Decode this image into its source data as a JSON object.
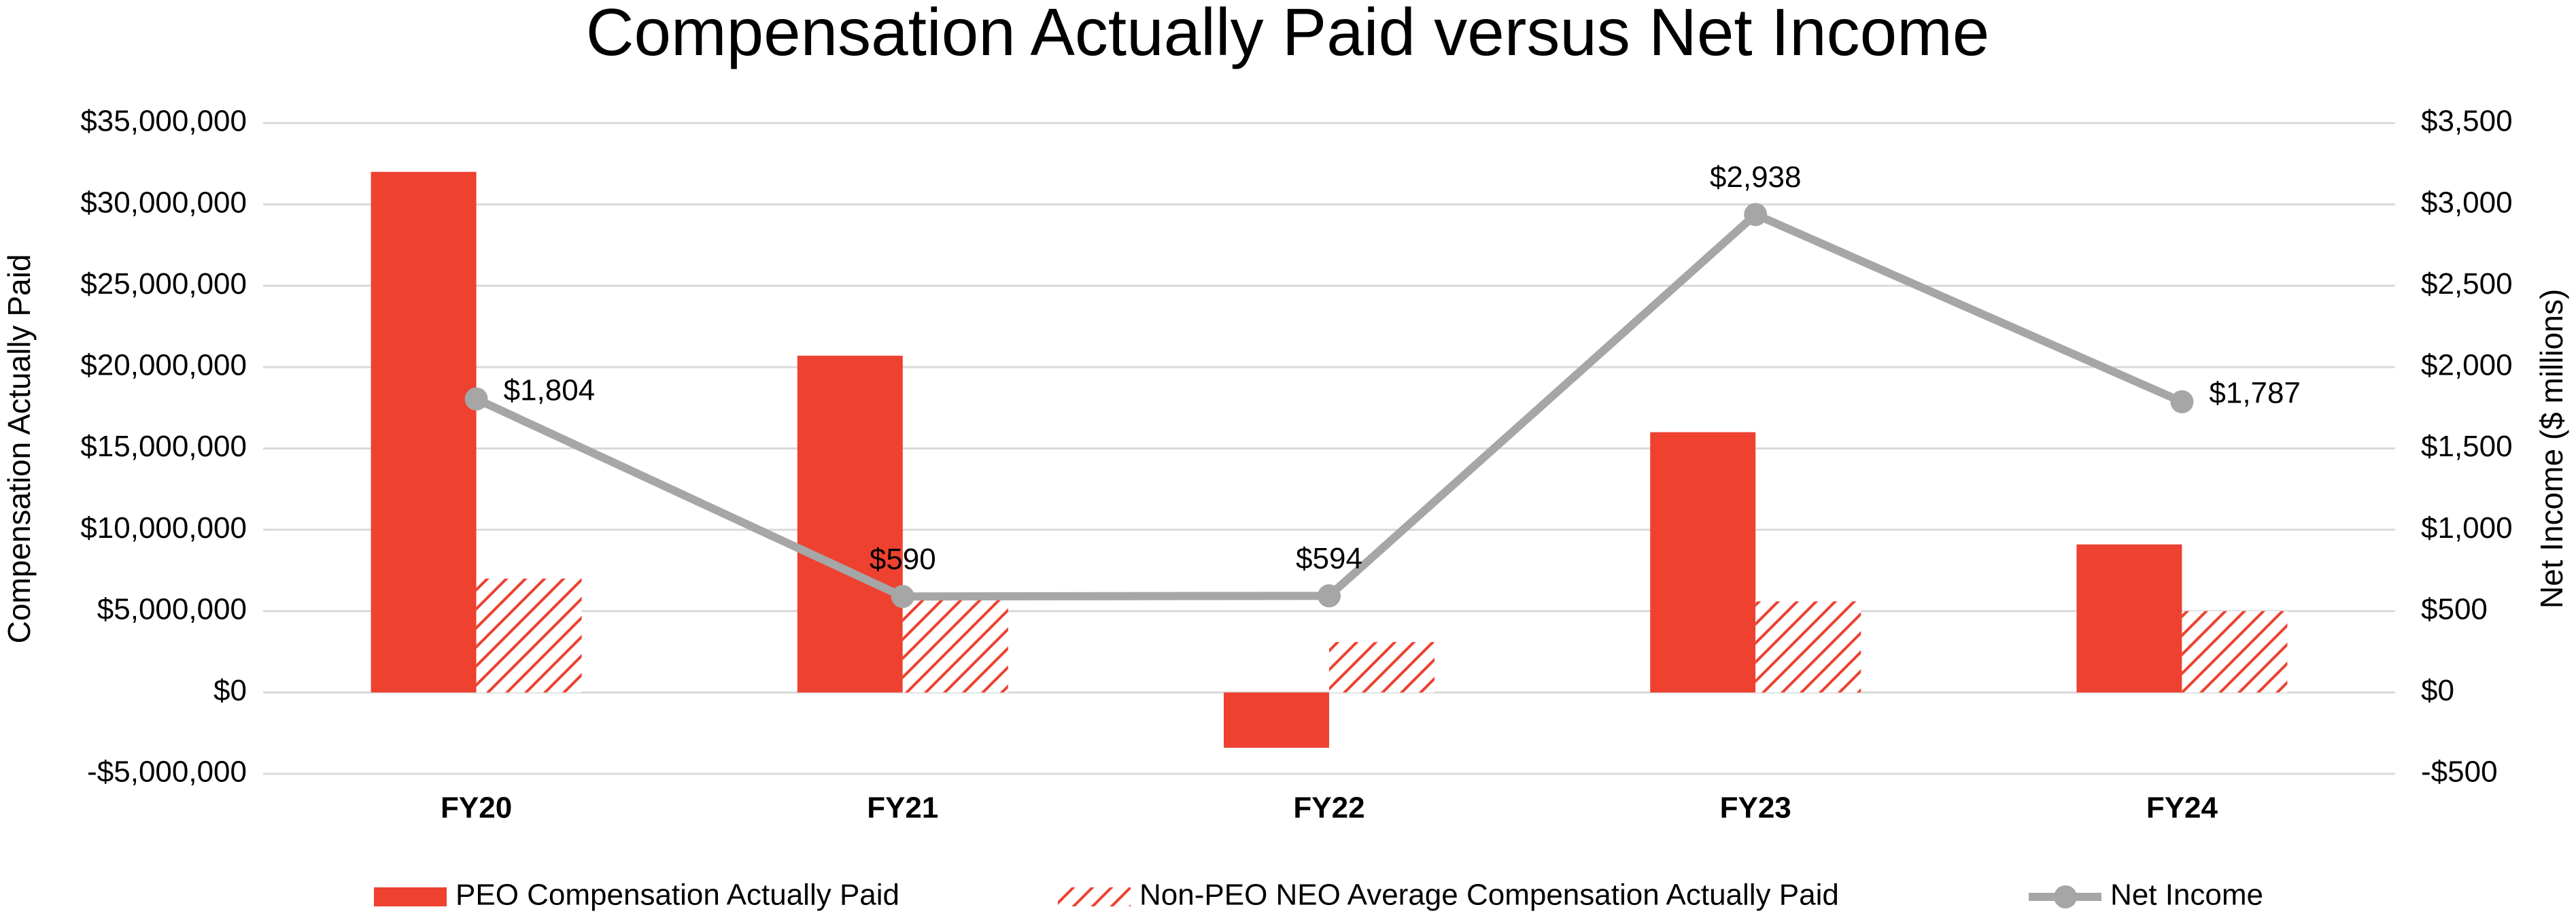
{
  "chart_data": {
    "type": "bar_line",
    "title": "Compensation Actually Paid versus Net Income",
    "y_label": "Compensation Actually Paid",
    "y2_label": "Net Income ($ millions)",
    "categories": [
      "FY20",
      "FY21",
      "FY22",
      "FY23",
      "FY24"
    ],
    "series": [
      {
        "name": "PEO Compensation Actually Paid",
        "type": "bar",
        "color": "#ee4130",
        "values": [
          32000000,
          20700000,
          -3400000,
          16000000,
          9100000
        ]
      },
      {
        "name": "Non-PEO NEO Average Compensation Actually Paid",
        "type": "bar",
        "pattern": "hatch",
        "color": "#ee4130",
        "values": [
          7000000,
          6000000,
          3100000,
          5600000,
          5000000
        ]
      },
      {
        "name": "Net Income",
        "type": "line",
        "axis": "y2",
        "color": "#a6a6a6",
        "values": [
          1804,
          590,
          594,
          2938,
          1787
        ],
        "value_labels": [
          "$1,804",
          "$590",
          "$594",
          "$2,938",
          "$1,787"
        ]
      }
    ],
    "ylim": [
      -5000000,
      35000000
    ],
    "yticks": [
      {
        "value": -5000000,
        "label": "-$5,000,000"
      },
      {
        "value": 0,
        "label": "$0"
      },
      {
        "value": 5000000,
        "label": "$5,000,000"
      },
      {
        "value": 10000000,
        "label": "$10,000,000"
      },
      {
        "value": 15000000,
        "label": "$15,000,000"
      },
      {
        "value": 20000000,
        "label": "$20,000,000"
      },
      {
        "value": 25000000,
        "label": "$25,000,000"
      },
      {
        "value": 30000000,
        "label": "$30,000,000"
      },
      {
        "value": 35000000,
        "label": "$35,000,000"
      }
    ],
    "y2lim": [
      -500,
      3500
    ],
    "y2ticks": [
      {
        "value": -500,
        "label": "-$500"
      },
      {
        "value": 0,
        "label": "$0"
      },
      {
        "value": 500,
        "label": "$500"
      },
      {
        "value": 1000,
        "label": "$1,000"
      },
      {
        "value": 1500,
        "label": "$1,500"
      },
      {
        "value": 2000,
        "label": "$2,000"
      },
      {
        "value": 2500,
        "label": "$2,500"
      },
      {
        "value": 3000,
        "label": "$3,000"
      },
      {
        "value": 3500,
        "label": "$3,500"
      }
    ],
    "grid": true,
    "legend": "bottom"
  }
}
